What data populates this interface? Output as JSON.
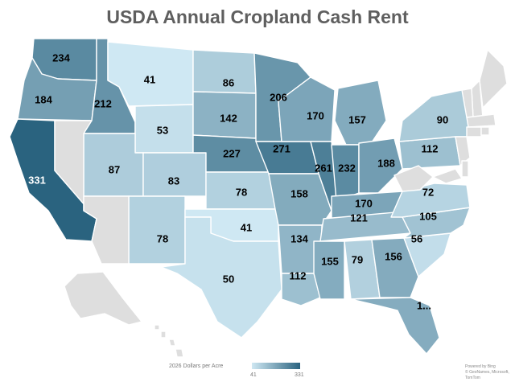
{
  "title": "USDA Annual Cropland Cash Rent",
  "legend": {
    "label": "2026 Dollars per Acre",
    "min": "41",
    "max": "331",
    "min_value": 41,
    "max_value": 331,
    "color_low": "#cfe8f3",
    "color_high": "#2a637f"
  },
  "no_data_color": "#dedede",
  "attribution": {
    "powered": "Powered by Bing",
    "credits": "© GeoNames, Microsoft, TomTom"
  },
  "states": [
    {
      "id": "WA",
      "value": 234,
      "label": "234"
    },
    {
      "id": "OR",
      "value": 184,
      "label": "184"
    },
    {
      "id": "CA",
      "value": 331,
      "label": "331"
    },
    {
      "id": "ID",
      "value": 212,
      "label": "212"
    },
    {
      "id": "MT",
      "value": 41,
      "label": "41"
    },
    {
      "id": "WY",
      "value": 53,
      "label": "53"
    },
    {
      "id": "UT",
      "value": 87,
      "label": "87"
    },
    {
      "id": "CO",
      "value": 83,
      "label": "83"
    },
    {
      "id": "NM",
      "value": 78,
      "label": "78"
    },
    {
      "id": "ND",
      "value": 86,
      "label": "86"
    },
    {
      "id": "SD",
      "value": 142,
      "label": "142"
    },
    {
      "id": "NE",
      "value": 227,
      "label": "227"
    },
    {
      "id": "KS",
      "value": 78,
      "label": "78"
    },
    {
      "id": "OK",
      "value": 41,
      "label": "41"
    },
    {
      "id": "TX",
      "value": 50,
      "label": "50"
    },
    {
      "id": "MN",
      "value": 206,
      "label": "206"
    },
    {
      "id": "IA",
      "value": 271,
      "label": "271"
    },
    {
      "id": "MO",
      "value": 158,
      "label": "158"
    },
    {
      "id": "AR",
      "value": 134,
      "label": "134"
    },
    {
      "id": "LA",
      "value": 112,
      "label": "112"
    },
    {
      "id": "WI",
      "value": 170,
      "label": "170"
    },
    {
      "id": "IL",
      "value": 261,
      "label": "261"
    },
    {
      "id": "MI",
      "value": 157,
      "label": "157"
    },
    {
      "id": "IN",
      "value": 232,
      "label": "232"
    },
    {
      "id": "OH",
      "value": 188,
      "label": "188"
    },
    {
      "id": "KY",
      "value": 170,
      "label": "170"
    },
    {
      "id": "TN",
      "value": 121,
      "label": "121"
    },
    {
      "id": "MS",
      "value": 155,
      "label": "155"
    },
    {
      "id": "AL",
      "value": 79,
      "label": "79"
    },
    {
      "id": "GA",
      "value": 156,
      "label": "156"
    },
    {
      "id": "FL",
      "value": null,
      "label": "1..."
    },
    {
      "id": "SC",
      "value": 56,
      "label": "56"
    },
    {
      "id": "NC",
      "value": 105,
      "label": "105"
    },
    {
      "id": "VA",
      "value": 72,
      "label": "72"
    },
    {
      "id": "PA",
      "value": 112,
      "label": "112"
    },
    {
      "id": "NY",
      "value": 90,
      "label": "90"
    },
    {
      "id": "NV",
      "value": null,
      "label": ""
    },
    {
      "id": "AZ",
      "value": null,
      "label": ""
    },
    {
      "id": "WV",
      "value": null,
      "label": ""
    },
    {
      "id": "ME",
      "value": null,
      "label": ""
    },
    {
      "id": "NH",
      "value": null,
      "label": ""
    },
    {
      "id": "VT",
      "value": null,
      "label": ""
    },
    {
      "id": "MA",
      "value": null,
      "label": ""
    },
    {
      "id": "CT",
      "value": null,
      "label": ""
    },
    {
      "id": "RI",
      "value": null,
      "label": ""
    },
    {
      "id": "NJ",
      "value": null,
      "label": ""
    },
    {
      "id": "MD",
      "value": null,
      "label": ""
    },
    {
      "id": "DE",
      "value": null,
      "label": ""
    },
    {
      "id": "AK",
      "value": null,
      "label": ""
    },
    {
      "id": "HI",
      "value": null,
      "label": ""
    }
  ]
}
